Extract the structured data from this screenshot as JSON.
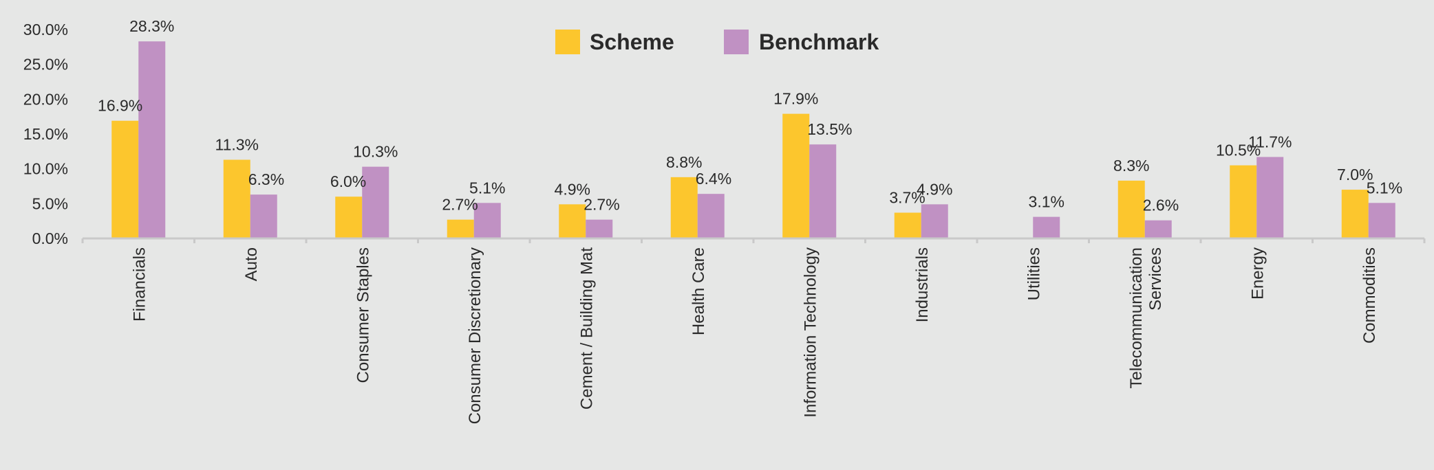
{
  "chart_data": {
    "type": "bar",
    "categories": [
      [
        "Financials"
      ],
      [
        "Auto"
      ],
      [
        "Consumer Staples"
      ],
      [
        "Consumer Discretionary"
      ],
      [
        "Cement / Building Mat"
      ],
      [
        "Health Care"
      ],
      [
        "Information Technology"
      ],
      [
        "Industrials"
      ],
      [
        "Utilities"
      ],
      [
        "Telecommunication",
        "Services"
      ],
      [
        "Energy"
      ],
      [
        "Commodities"
      ]
    ],
    "series": [
      {
        "name": "Scheme",
        "color": "#fcc62d",
        "values": [
          16.9,
          11.3,
          6.0,
          2.7,
          4.9,
          8.8,
          17.9,
          3.7,
          null,
          8.3,
          10.5,
          7.0
        ],
        "labels": [
          "16.9%",
          "11.3%",
          "6.0%",
          "2.7%",
          "4.9%",
          "8.8%",
          "17.9%",
          "3.7%",
          "",
          "8.3%",
          "10.5%",
          "7.0%"
        ]
      },
      {
        "name": "Benchmark",
        "color": "#c091c3",
        "values": [
          28.3,
          6.3,
          10.3,
          5.1,
          2.7,
          6.4,
          13.5,
          4.9,
          3.1,
          2.6,
          11.7,
          5.1
        ],
        "labels": [
          "28.3%",
          "6.3%",
          "10.3%",
          "5.1%",
          "2.7%",
          "6.4%",
          "13.5%",
          "4.9%",
          "3.1%",
          "2.6%",
          "11.7%",
          "5.1%"
        ]
      }
    ],
    "yticks": [
      "0.0%",
      "5.0%",
      "10.0%",
      "15.0%",
      "20.0%",
      "25.0%",
      "30.0%"
    ],
    "ylim": [
      0,
      30
    ],
    "grid": false,
    "legend": "top-center",
    "axis_color": "#c9c9c9"
  }
}
